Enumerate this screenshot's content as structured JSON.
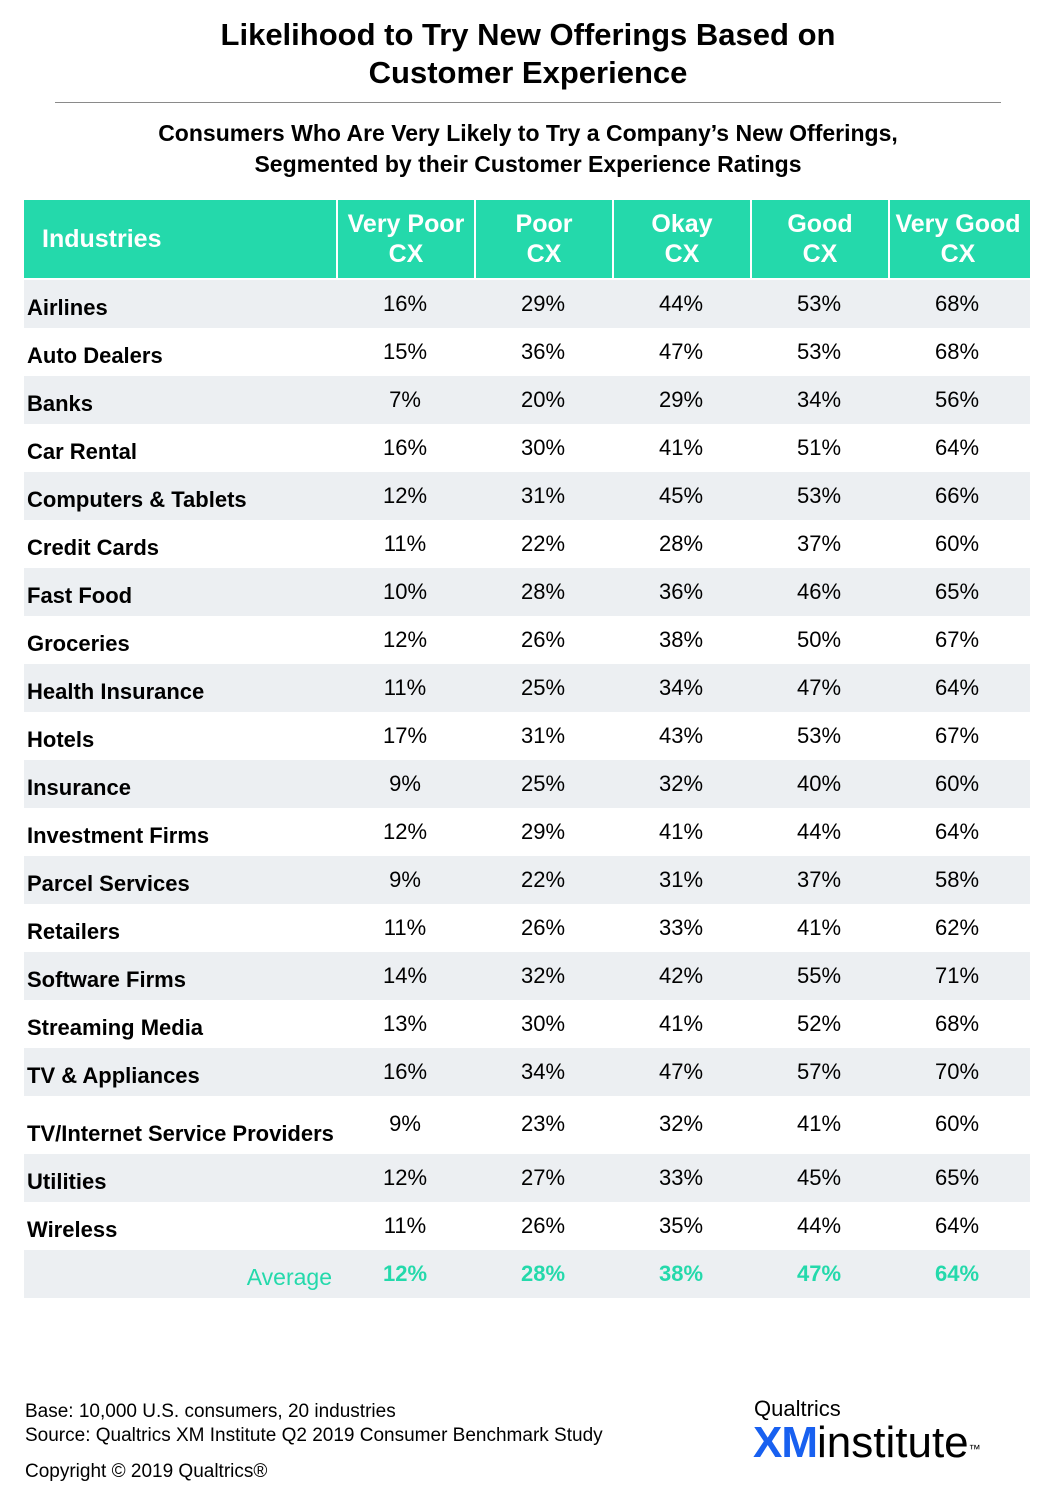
{
  "title_lines": [
    "Likelihood to Try New Offerings Based on",
    "Customer Experience"
  ],
  "subtitle_lines": [
    "Consumers Who Are Very Likely to Try a Company’s New Offerings,",
    "Segmented by their Customer Experience Ratings"
  ],
  "chart_data": {
    "type": "table",
    "title": "Likelihood to Try New Offerings Based on Customer Experience",
    "subtitle": "Consumers Who Are Very Likely to Try a Company’s New Offerings, Segmented by their Customer Experience Ratings",
    "header_industry": "Industries",
    "columns": [
      [
        "Very Poor",
        "CX"
      ],
      [
        "Poor",
        "CX"
      ],
      [
        "Okay",
        "CX"
      ],
      [
        "Good",
        "CX"
      ],
      [
        "Very Good",
        "CX"
      ]
    ],
    "rows": [
      {
        "industry": "Airlines",
        "values": [
          "16%",
          "29%",
          "44%",
          "53%",
          "68%"
        ]
      },
      {
        "industry": "Auto Dealers",
        "values": [
          "15%",
          "36%",
          "47%",
          "53%",
          "68%"
        ]
      },
      {
        "industry": "Banks",
        "values": [
          "7%",
          "20%",
          "29%",
          "34%",
          "56%"
        ]
      },
      {
        "industry": "Car Rental",
        "values": [
          "16%",
          "30%",
          "41%",
          "51%",
          "64%"
        ]
      },
      {
        "industry": "Computers & Tablets",
        "values": [
          "12%",
          "31%",
          "45%",
          "53%",
          "66%"
        ]
      },
      {
        "industry": "Credit Cards",
        "values": [
          "11%",
          "22%",
          "28%",
          "37%",
          "60%"
        ]
      },
      {
        "industry": "Fast Food",
        "values": [
          "10%",
          "28%",
          "36%",
          "46%",
          "65%"
        ]
      },
      {
        "industry": "Groceries",
        "values": [
          "12%",
          "26%",
          "38%",
          "50%",
          "67%"
        ]
      },
      {
        "industry": "Health Insurance",
        "values": [
          "11%",
          "25%",
          "34%",
          "47%",
          "64%"
        ]
      },
      {
        "industry": "Hotels",
        "values": [
          "17%",
          "31%",
          "43%",
          "53%",
          "67%"
        ]
      },
      {
        "industry": "Insurance",
        "values": [
          "9%",
          "25%",
          "32%",
          "40%",
          "60%"
        ]
      },
      {
        "industry": "Investment Firms",
        "values": [
          "12%",
          "29%",
          "41%",
          "44%",
          "64%"
        ]
      },
      {
        "industry": "Parcel Services",
        "values": [
          "9%",
          "22%",
          "31%",
          "37%",
          "58%"
        ]
      },
      {
        "industry": "Retailers",
        "values": [
          "11%",
          "26%",
          "33%",
          "41%",
          "62%"
        ]
      },
      {
        "industry": "Software Firms",
        "values": [
          "14%",
          "32%",
          "42%",
          "55%",
          "71%"
        ]
      },
      {
        "industry": "Streaming Media",
        "values": [
          "13%",
          "30%",
          "41%",
          "52%",
          "68%"
        ]
      },
      {
        "industry": "TV & Appliances",
        "values": [
          "16%",
          "34%",
          "47%",
          "57%",
          "70%"
        ]
      },
      {
        "industry": "TV/Internet Service Providers",
        "values": [
          "9%",
          "23%",
          "32%",
          "41%",
          "60%"
        ]
      },
      {
        "industry": "Utilities",
        "values": [
          "12%",
          "27%",
          "33%",
          "45%",
          "65%"
        ]
      },
      {
        "industry": "Wireless",
        "values": [
          "11%",
          "26%",
          "35%",
          "44%",
          "64%"
        ]
      }
    ],
    "average": {
      "label": "Average",
      "values": [
        "12%",
        "28%",
        "38%",
        "47%",
        "64%"
      ]
    }
  },
  "colors": {
    "accent": "#24d9ab",
    "alt_row": "#eceff2",
    "logo_blue": "#1860f0"
  },
  "footer": {
    "base": "Base: 10,000 U.S. consumers, 20 industries",
    "source": "Source: Qualtrics XM Institute Q2 2019 Consumer Benchmark Study",
    "copyright": "Copyright © 2019 Qualtrics®"
  },
  "logo": {
    "top": "Qualtrics",
    "xm": "XM",
    "institute": "institute",
    "tm": "™"
  }
}
